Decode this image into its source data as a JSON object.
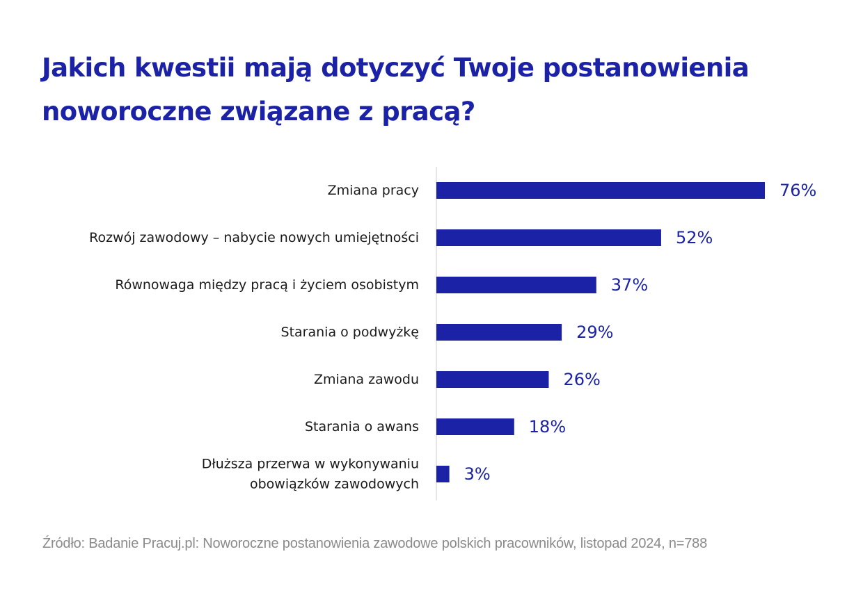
{
  "title": "Jakich kwestii mają dotyczyć Twoje postanowienia noworoczne związane z pracą?",
  "source": "Źródło: Badanie Pracuj.pl: Noworoczne postanowienia zawodowe polskich pracowników, listopad 2024, n=788",
  "colors": {
    "bar": "#1b22a6",
    "value_label": "#1b22a6",
    "category_label": "#1a1a1a",
    "axis": "#c8c8c8"
  },
  "chart_data": {
    "type": "bar",
    "orientation": "horizontal",
    "unit": "%",
    "categories": [
      "Zmiana pracy",
      "Rozwój zawodowy – nabycie nowych umiejętności",
      "Równowaga między pracą i życiem osobistym",
      "Starania o podwyżkę",
      "Zmiana zawodu",
      "Starania o awans",
      [
        "Dłuższa przerwa w wykonywaniu",
        "obowiązków zawodowych"
      ]
    ],
    "values": [
      76,
      52,
      37,
      29,
      26,
      18,
      3
    ],
    "value_labels": [
      "76%",
      "52%",
      "37%",
      "29%",
      "26%",
      "18%",
      "3%"
    ],
    "xlim": [
      0,
      76
    ],
    "grid": false,
    "legend": "none"
  }
}
